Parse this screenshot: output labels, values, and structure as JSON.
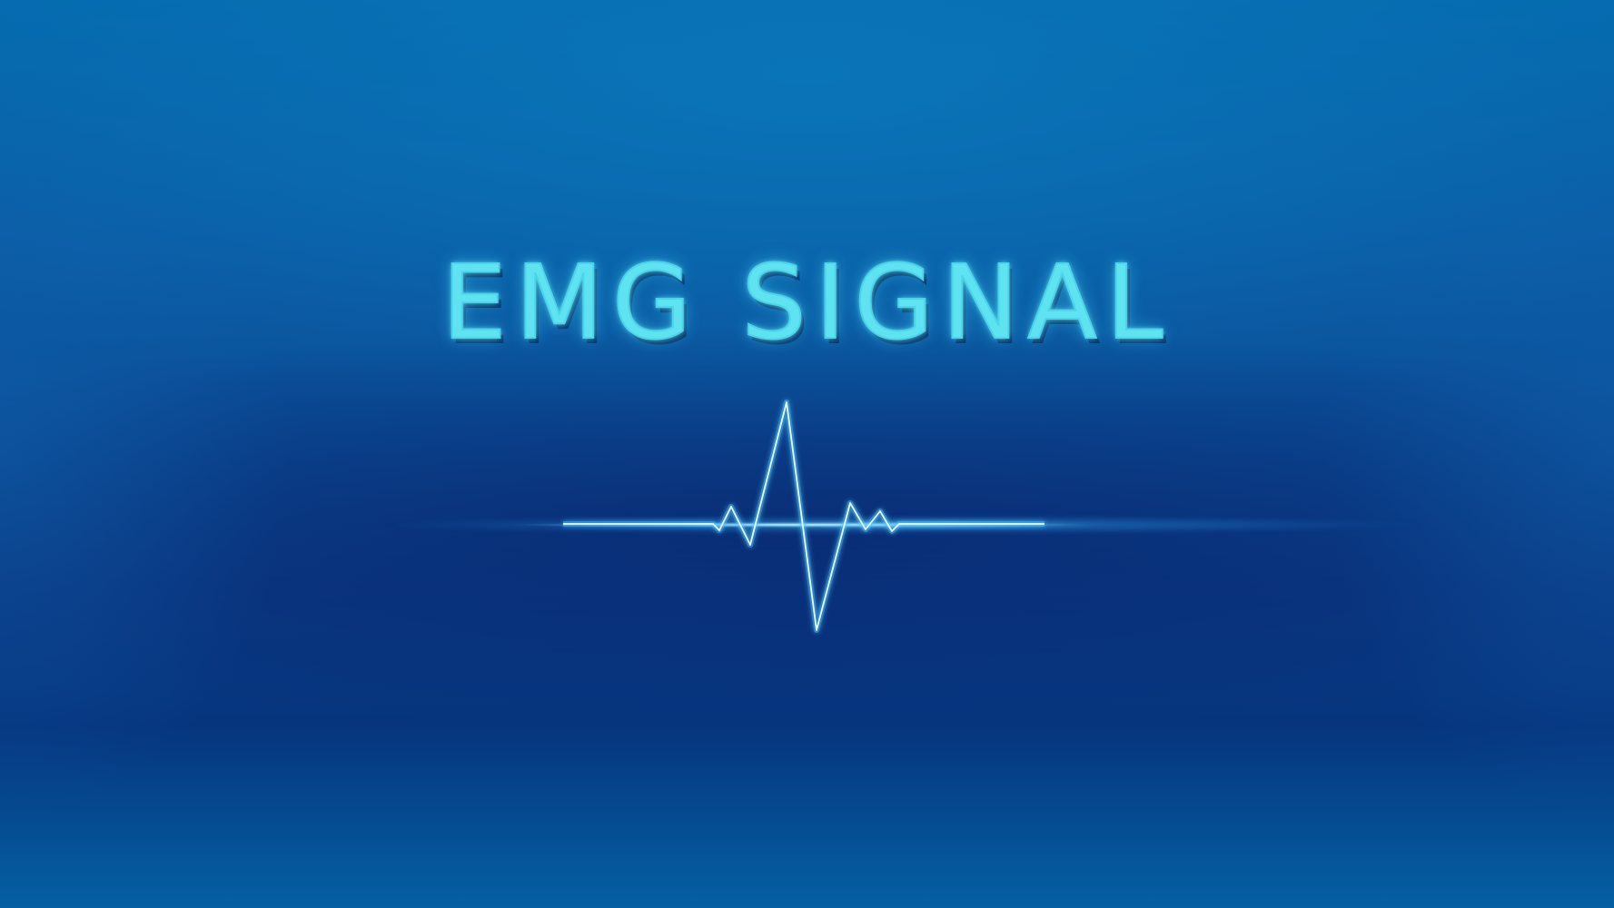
{
  "title": "EMG SIGNAL",
  "colors": {
    "background_top": "#0468ad",
    "background_mid": "#0b4d98",
    "background_deep": "#06357e",
    "text_glow": "#5fe3f0",
    "signal_line": "#e8fbff",
    "signal_glow": "#4fc7ff"
  },
  "icons": [
    "emg-pulse-waveform"
  ]
}
